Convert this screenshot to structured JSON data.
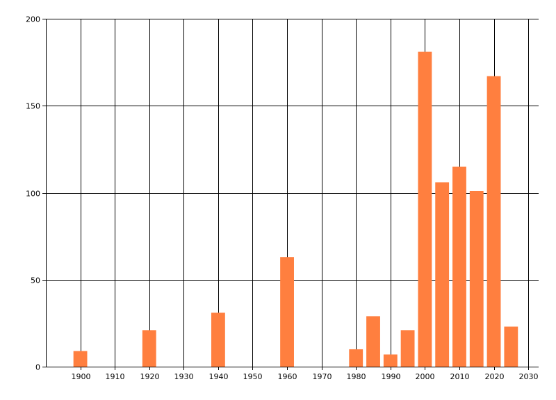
{
  "chart_data": {
    "type": "bar",
    "title": "",
    "xlabel": "",
    "ylabel": "",
    "xlim": [
      1890,
      2033
    ],
    "ylim": [
      0,
      200
    ],
    "grid": true,
    "legend": "none",
    "bar_color": "#FF7F3F",
    "x_ticks": [
      1900,
      1910,
      1920,
      1930,
      1940,
      1950,
      1960,
      1970,
      1980,
      1990,
      2000,
      2010,
      2020,
      2030
    ],
    "y_ticks": [
      0,
      50,
      100,
      150,
      200
    ],
    "x": [
      1900,
      1920,
      1940,
      1960,
      1980,
      1985,
      1990,
      1995,
      2000,
      2005,
      2010,
      2015,
      2020,
      2025
    ],
    "values": [
      9,
      21,
      31,
      63,
      10,
      29,
      7,
      21,
      181,
      106,
      115,
      101,
      167,
      23
    ]
  }
}
